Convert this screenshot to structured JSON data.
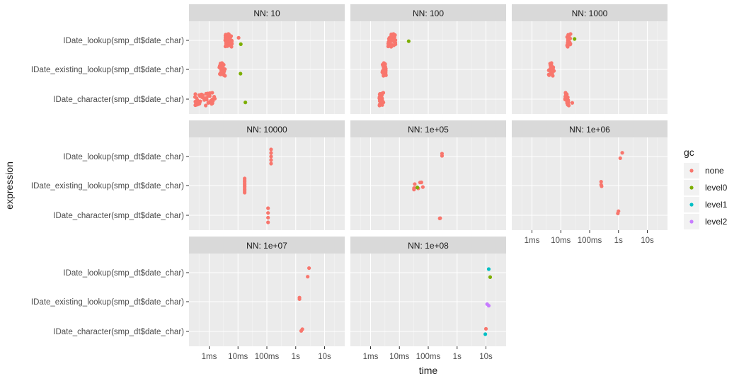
{
  "chart_data": {
    "type": "scatter",
    "title": "",
    "facet_var": "NN",
    "xlabel": "time",
    "ylabel": "expression",
    "x_scale": "log10",
    "x_unit": "seconds",
    "xlim": [
      0.0002,
      50
    ],
    "x_ticks": [
      {
        "value": 0.001,
        "label": "1ms"
      },
      {
        "value": 0.01,
        "label": "10ms"
      },
      {
        "value": 0.1,
        "label": "100ms"
      },
      {
        "value": 1,
        "label": "1s"
      },
      {
        "value": 10,
        "label": "10s"
      }
    ],
    "categories": [
      "IDate_lookup(smp_dt$date_char)",
      "IDate_existing_lookup(smp_dt$date_char)",
      "IDate_character(smp_dt$date_char)"
    ],
    "legend": {
      "title": "gc",
      "position": "right",
      "entries": [
        {
          "name": "none",
          "color": "#F8766D"
        },
        {
          "name": "level0",
          "color": "#7CAE00"
        },
        {
          "name": "level1",
          "color": "#00BFC4"
        },
        {
          "name": "level2",
          "color": "#C77CFF"
        }
      ]
    },
    "panels": [
      {
        "label": "NN: 10",
        "series": {
          "IDate_lookup(smp_dt$date_char)": [
            {
              "range": [
                0.0035,
                0.0062
              ],
              "n": 44,
              "gc": "none"
            },
            {
              "x": 0.0105,
              "gc": "none"
            },
            {
              "x": 0.0125,
              "gc": "level0"
            }
          ],
          "IDate_existing_lookup(smp_dt$date_char)": [
            {
              "range": [
                0.0022,
                0.0036
              ],
              "n": 30,
              "gc": "none"
            },
            {
              "x": 0.0122,
              "gc": "level0"
            }
          ],
          "IDate_character(smp_dt$date_char)": [
            {
              "range": [
                0.00032,
                0.0016
              ],
              "n": 40,
              "gc": "none"
            },
            {
              "x": 0.018,
              "gc": "level0"
            }
          ]
        }
      },
      {
        "label": "NN: 100",
        "series": {
          "IDate_lookup(smp_dt$date_char)": [
            {
              "range": [
                0.0038,
                0.0075
              ],
              "n": 38,
              "gc": "none"
            },
            {
              "x": 0.021,
              "gc": "level0"
            }
          ],
          "IDate_existing_lookup(smp_dt$date_char)": [
            {
              "range": [
                0.0025,
                0.0035
              ],
              "n": 26,
              "gc": "none"
            }
          ],
          "IDate_character(smp_dt$date_char)": [
            {
              "range": [
                0.002,
                0.0028
              ],
              "n": 26,
              "gc": "none"
            }
          ]
        }
      },
      {
        "label": "NN: 1000",
        "series": {
          "IDate_lookup(smp_dt$date_char)": [
            {
              "range": [
                0.016,
                0.022
              ],
              "n": 18,
              "gc": "none"
            },
            {
              "x": 0.03,
              "gc": "level0"
            }
          ],
          "IDate_existing_lookup(smp_dt$date_char)": [
            {
              "range": [
                0.0038,
                0.0058
              ],
              "n": 22,
              "gc": "none"
            }
          ],
          "IDate_character(smp_dt$date_char)": [
            {
              "range": [
                0.014,
                0.019
              ],
              "n": 18,
              "gc": "none"
            },
            {
              "x": 0.025,
              "gc": "none"
            }
          ]
        }
      },
      {
        "label": "NN: 10000",
        "series": {
          "IDate_lookup(smp_dt$date_char)": [
            {
              "range": [
                0.14,
                0.14
              ],
              "n": 5,
              "gc": "none"
            }
          ],
          "IDate_existing_lookup(smp_dt$date_char)": [
            {
              "range": [
                0.017,
                0.017
              ],
              "n": 10,
              "gc": "none"
            }
          ],
          "IDate_character(smp_dt$date_char)": [
            {
              "range": [
                0.11,
                0.11
              ],
              "n": 4,
              "gc": "none"
            }
          ]
        }
      },
      {
        "label": "NN: 1e+05",
        "series": {
          "IDate_lookup(smp_dt$date_char)": [
            {
              "x": 0.3,
              "gc": "none"
            },
            {
              "x": 0.3,
              "gc": "none"
            }
          ],
          "IDate_existing_lookup(smp_dt$date_char)": [
            {
              "x": 0.032,
              "gc": "none"
            },
            {
              "x": 0.032,
              "gc": "none"
            },
            {
              "x": 0.033,
              "gc": "none"
            },
            {
              "x": 0.034,
              "gc": "none"
            },
            {
              "x": 0.041,
              "gc": "none"
            },
            {
              "x": 0.045,
              "gc": "none"
            },
            {
              "x": 0.052,
              "gc": "none"
            },
            {
              "x": 0.058,
              "gc": "none"
            },
            {
              "x": 0.065,
              "gc": "none"
            },
            {
              "x": 0.042,
              "gc": "level0"
            }
          ],
          "IDate_character(smp_dt$date_char)": [
            {
              "x": 0.25,
              "gc": "none"
            },
            {
              "x": 0.26,
              "gc": "none"
            }
          ]
        }
      },
      {
        "label": "NN: 1e+06",
        "series": {
          "IDate_lookup(smp_dt$date_char)": [
            {
              "x": 1.15,
              "gc": "none"
            },
            {
              "x": 1.35,
              "gc": "none"
            }
          ],
          "IDate_existing_lookup(smp_dt$date_char)": [
            {
              "x": 0.25,
              "gc": "none"
            },
            {
              "x": 0.26,
              "gc": "none"
            },
            {
              "x": 0.25,
              "gc": "none"
            }
          ],
          "IDate_character(smp_dt$date_char)": [
            {
              "x": 0.95,
              "gc": "none"
            },
            {
              "x": 1.0,
              "gc": "none"
            }
          ]
        }
      },
      {
        "label": "NN: 1e+07",
        "series": {
          "IDate_lookup(smp_dt$date_char)": [
            {
              "x": 2.6,
              "gc": "none"
            },
            {
              "x": 2.9,
              "gc": "none"
            }
          ],
          "IDate_existing_lookup(smp_dt$date_char)": [
            {
              "x": 1.35,
              "gc": "none"
            },
            {
              "x": 1.35,
              "gc": "none"
            }
          ],
          "IDate_character(smp_dt$date_char)": [
            {
              "x": 1.55,
              "gc": "none"
            },
            {
              "x": 1.7,
              "gc": "none"
            }
          ]
        }
      },
      {
        "label": "NN: 1e+08",
        "series": {
          "IDate_lookup(smp_dt$date_char)": [
            {
              "x": 12.5,
              "gc": "level1"
            },
            {
              "x": 14.0,
              "gc": "level0"
            }
          ],
          "IDate_existing_lookup(smp_dt$date_char)": [
            {
              "x": 11.0,
              "gc": "level2"
            },
            {
              "x": 12.5,
              "gc": "level2"
            }
          ],
          "IDate_character(smp_dt$date_char)": [
            {
              "x": 9.5,
              "gc": "level1"
            },
            {
              "x": 10.0,
              "gc": "none"
            }
          ]
        }
      }
    ]
  }
}
